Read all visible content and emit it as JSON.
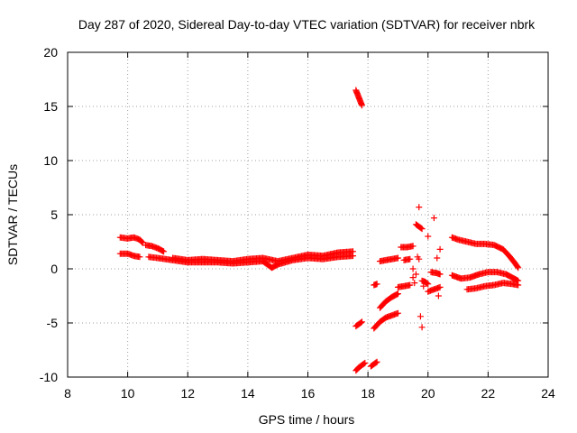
{
  "chart_data": {
    "type": "scatter",
    "title": "Day 287 of 2020, Sidereal Day-to-day VTEC variation (SDTVAR) for receiver nbrk",
    "xlabel": "GPS time / hours",
    "ylabel": "SDTVAR / TECUs",
    "xlim": [
      8,
      24
    ],
    "ylim": [
      -10,
      20
    ],
    "xticks": [
      8,
      10,
      12,
      14,
      16,
      18,
      20,
      22,
      24
    ],
    "yticks": [
      -10,
      -5,
      0,
      5,
      10,
      15,
      20
    ],
    "grid": true,
    "marker": "plus",
    "color": "#ff0000",
    "segments": [
      {
        "x": [
          9.75,
          10.0,
          10.2,
          10.4,
          10.5
        ],
        "y": [
          2.9,
          2.8,
          2.9,
          2.7,
          2.4
        ]
      },
      {
        "x": [
          9.75,
          10.0,
          10.2,
          10.4
        ],
        "y": [
          1.4,
          1.4,
          1.2,
          1.1
        ]
      },
      {
        "x": [
          10.6,
          10.8,
          11.0,
          11.2
        ],
        "y": [
          2.2,
          2.1,
          1.9,
          1.6
        ]
      },
      {
        "x": [
          10.7,
          11.0,
          11.5,
          12.0,
          12.5,
          13.0,
          13.5,
          14.0,
          14.5,
          14.8,
          15.0,
          15.5,
          16.0,
          16.5,
          17.0,
          17.5
        ],
        "y": [
          1.1,
          1.0,
          0.8,
          0.6,
          0.6,
          0.6,
          0.5,
          0.6,
          0.7,
          0.1,
          0.4,
          0.8,
          1.0,
          0.9,
          1.1,
          1.2
        ]
      },
      {
        "x": [
          11.5,
          12.0,
          12.5,
          13.0,
          13.5,
          14.0,
          14.5,
          15.0,
          15.5,
          16.0,
          16.5,
          17.0,
          17.5
        ],
        "y": [
          1.0,
          0.8,
          0.9,
          0.8,
          0.7,
          0.9,
          1.0,
          0.7,
          1.0,
          1.3,
          1.2,
          1.5,
          1.6
        ]
      },
      {
        "x": [
          17.6,
          17.7,
          17.8
        ],
        "y": [
          16.5,
          15.8,
          15.1
        ]
      },
      {
        "x": [
          17.6,
          17.7,
          17.8
        ],
        "y": [
          -5.3,
          -5.1,
          -4.9
        ]
      },
      {
        "x": [
          17.6,
          17.7,
          17.8,
          17.9
        ],
        "y": [
          -9.4,
          -9.1,
          -8.9,
          -8.7
        ]
      },
      {
        "x": [
          18.1,
          18.2,
          18.3
        ],
        "y": [
          -9.0,
          -8.8,
          -8.6
        ]
      },
      {
        "x": [
          18.2,
          18.3
        ],
        "y": [
          -1.5,
          -1.4
        ]
      },
      {
        "x": [
          18.2,
          18.4,
          18.6,
          18.8,
          19.0
        ],
        "y": [
          -5.5,
          -4.9,
          -4.5,
          -4.3,
          -4.1
        ]
      },
      {
        "x": [
          18.4,
          18.6,
          18.8,
          19.0
        ],
        "y": [
          -3.6,
          -3.0,
          -2.6,
          -2.3
        ]
      },
      {
        "x": [
          18.4,
          18.6,
          18.8,
          19.0
        ],
        "y": [
          0.7,
          0.8,
          0.9,
          1.0
        ]
      },
      {
        "x": [
          19.0,
          19.2,
          19.4
        ],
        "y": [
          -1.7,
          -1.6,
          -1.5
        ]
      },
      {
        "x": [
          19.2,
          19.4
        ],
        "y": [
          0.8,
          0.9
        ]
      },
      {
        "x": [
          19.1,
          19.3,
          19.5
        ],
        "y": [
          2.0,
          2.0,
          2.1
        ]
      },
      {
        "x": [
          19.6,
          19.7,
          19.8
        ],
        "y": [
          4.1,
          3.9,
          3.7
        ]
      },
      {
        "x": [
          19.8,
          19.9,
          20.0
        ],
        "y": [
          -1.1,
          -1.2,
          -1.4
        ]
      },
      {
        "x": [
          20.0,
          20.2,
          20.4
        ],
        "y": [
          -2.1,
          -1.9,
          -1.7
        ]
      },
      {
        "x": [
          20.1,
          20.3,
          20.4
        ],
        "y": [
          -0.3,
          -0.4,
          -0.5
        ]
      },
      {
        "x": [
          20.8,
          21.0,
          21.3,
          21.6,
          21.9,
          22.2,
          22.5,
          22.7,
          22.9,
          23.0
        ],
        "y": [
          2.9,
          2.7,
          2.5,
          2.3,
          2.3,
          2.2,
          1.8,
          1.2,
          0.5,
          0.1
        ]
      },
      {
        "x": [
          20.8,
          21.1,
          21.4,
          21.7,
          22.0,
          22.3,
          22.6,
          22.8,
          23.0
        ],
        "y": [
          -0.6,
          -0.9,
          -0.8,
          -0.5,
          -0.3,
          -0.3,
          -0.5,
          -0.8,
          -1.1
        ]
      },
      {
        "x": [
          21.3,
          21.6,
          21.9,
          22.2,
          22.5,
          22.8,
          23.0
        ],
        "y": [
          -1.9,
          -1.8,
          -1.6,
          -1.5,
          -1.3,
          -1.4,
          -1.5
        ]
      }
    ],
    "isolated_points": {
      "x": [
        19.5,
        19.7,
        19.75,
        19.8,
        19.85,
        19.6,
        19.7,
        19.55,
        19.65,
        20.3,
        20.4,
        20.2,
        20.35,
        19.5,
        20.0
      ],
      "y": [
        0.0,
        5.7,
        -4.4,
        -5.4,
        -1.6,
        -0.5,
        0.9,
        -1.3,
        1.1,
        1.0,
        1.8,
        4.7,
        -2.5,
        -0.8,
        3.0
      ]
    }
  }
}
